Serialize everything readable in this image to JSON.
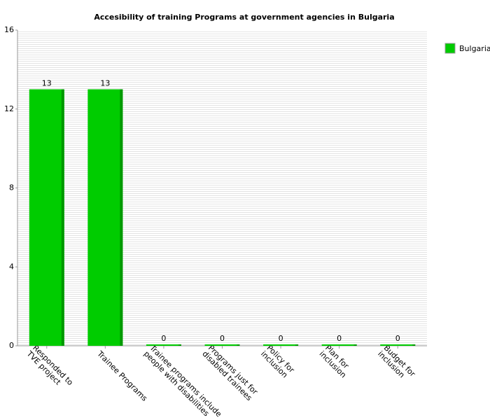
{
  "chart_data": {
    "type": "bar",
    "title": "Accesibility of training Programs at government agencies in Bulgaria",
    "categories": [
      "Responded to\nTVE project",
      "Trainee Programs",
      "Trainee programs include\npeople with disabilities",
      "Programs just for\ndisabled trainees",
      "Policy for\ninclusion",
      "Plan for\ninclusion",
      "Budget for\ninclusion"
    ],
    "series": [
      {
        "name": "Bulgaria",
        "color": "#00cc00",
        "values": [
          13,
          13,
          0,
          0,
          0,
          0,
          0
        ]
      }
    ],
    "ylim": [
      0,
      16
    ],
    "yticks": [
      0,
      4,
      8,
      12,
      16
    ],
    "grid": true,
    "legend": "right"
  }
}
